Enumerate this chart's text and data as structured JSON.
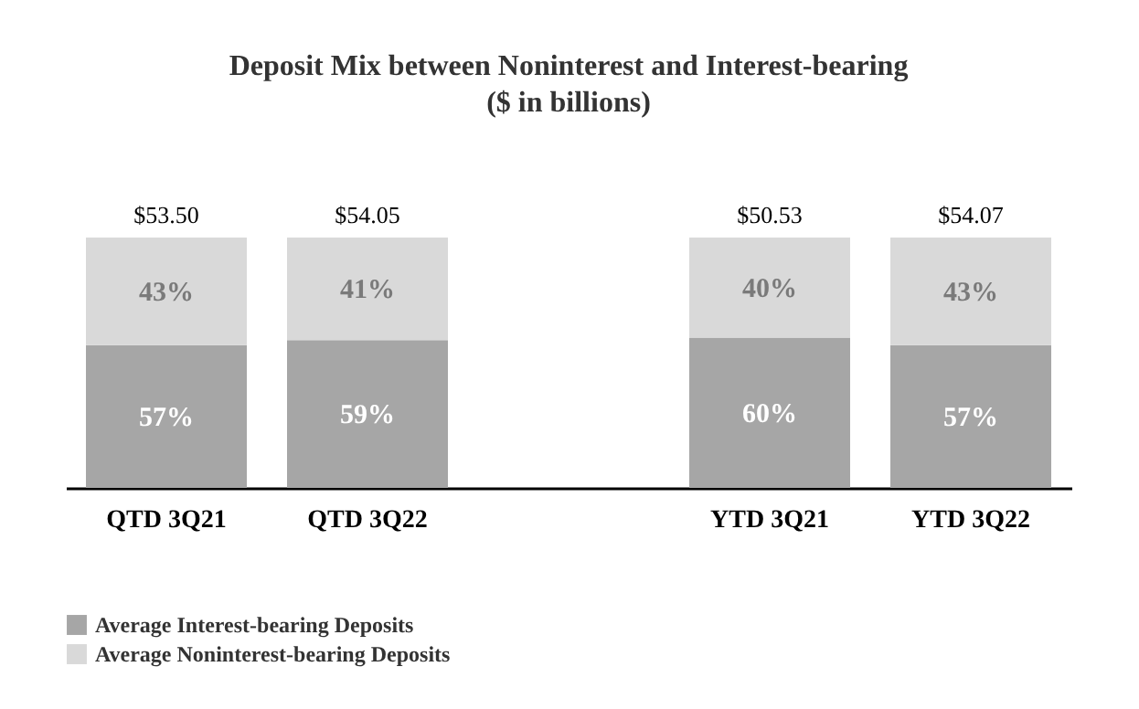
{
  "chart_data": {
    "type": "bar",
    "title": "Deposit Mix between Noninterest and Interest-bearing",
    "subtitle": "($ in billions)",
    "categories": [
      "QTD 3Q21",
      "QTD 3Q22",
      null,
      "YTD 3Q21",
      "YTD 3Q22"
    ],
    "stacked": true,
    "legend": "bottom",
    "series": [
      {
        "name": "Average Interest-bearing Deposits",
        "color": "#a6a6a6",
        "values": [
          57,
          59,
          null,
          60,
          57
        ],
        "value_labels": [
          "57%",
          "59%",
          null,
          "60%",
          "57%"
        ]
      },
      {
        "name": "Average Noninterest-bearing Deposits",
        "color": "#d9d9d9",
        "values": [
          43,
          41,
          null,
          40,
          43
        ],
        "value_labels": [
          "43%",
          "41%",
          null,
          "40%",
          "43%"
        ]
      }
    ],
    "annotations": [
      {
        "text": "$53.50",
        "x": "QTD 3Q21",
        "y": 100
      },
      {
        "text": "$54.05",
        "x": "QTD 3Q22",
        "y": 100
      },
      {
        "text": "$50.53",
        "x": "YTD 3Q21",
        "y": 100
      },
      {
        "text": "$54.07",
        "x": "YTD 3Q22",
        "y": 100
      }
    ]
  }
}
